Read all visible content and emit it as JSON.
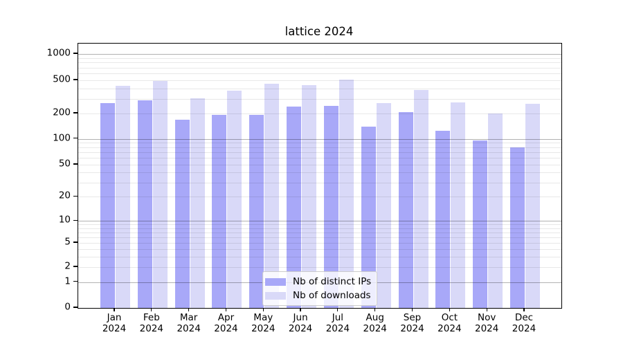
{
  "chart_data": {
    "type": "bar",
    "title": "lattice 2024",
    "categories": [
      "Jan 2024",
      "Feb 2024",
      "Mar 2024",
      "Apr 2024",
      "May 2024",
      "Jun 2024",
      "Jul 2024",
      "Aug 2024",
      "Sep 2024",
      "Oct 2024",
      "Nov 2024",
      "Dec 2024"
    ],
    "months": [
      "Jan",
      "Feb",
      "Mar",
      "Apr",
      "May",
      "Jun",
      "Jul",
      "Aug",
      "Sep",
      "Oct",
      "Nov",
      "Dec"
    ],
    "year": "2024",
    "series": [
      {
        "name": "Nb of distinct IPs",
        "color": "#a8a8f8",
        "values": [
          265,
          290,
          170,
          192,
          192,
          244,
          247,
          140,
          208,
          125,
          95,
          79
        ]
      },
      {
        "name": "Nb of downloads",
        "color": "#d9d9f8",
        "values": [
          430,
          490,
          305,
          375,
          455,
          435,
          510,
          268,
          380,
          270,
          200,
          260
        ]
      }
    ],
    "yscale": "symlog",
    "ytick_values": [
      0,
      1,
      2,
      5,
      10,
      20,
      50,
      100,
      200,
      500,
      1000
    ],
    "ytick_labels": [
      "0",
      "1",
      "2",
      "5",
      "10",
      "20",
      "50",
      "100",
      "200",
      "500",
      "1000"
    ],
    "ylim": [
      0,
      1300
    ],
    "grid": true,
    "legend_position": "lower center",
    "colors": {
      "distinct_ips_bar": "#a8a8f8",
      "downloads_bar": "#d9d9f8",
      "major_grid": "#b3b3b3",
      "minor_grid": "#e8e8e8",
      "axis": "#000000",
      "legend_border": "#cccccc"
    }
  }
}
